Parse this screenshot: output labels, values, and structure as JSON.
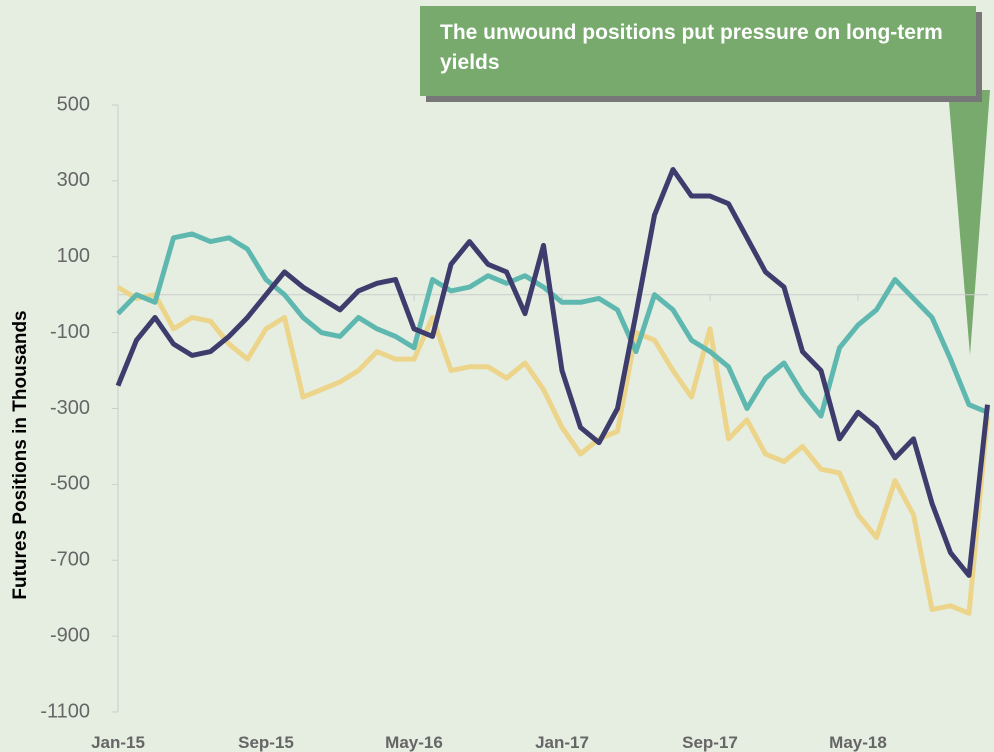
{
  "chart_data": {
    "type": "line",
    "y_label": "Futures Positions in Thousands",
    "annotation": "The unwound positions put pressure on long-term yields",
    "categories": [
      "Jan-15",
      null,
      null,
      null,
      null,
      null,
      null,
      null,
      "Sep-15",
      null,
      null,
      null,
      null,
      null,
      null,
      null,
      "May-16",
      null,
      null,
      null,
      null,
      null,
      null,
      null,
      "Jan-17",
      null,
      null,
      null,
      null,
      null,
      null,
      null,
      "Sep-17",
      null,
      null,
      null,
      null,
      null,
      null,
      null,
      "May-18",
      null,
      null,
      null,
      null,
      null,
      null,
      null
    ],
    "series": [
      {
        "color": "#3d3c6c",
        "values": [
          -240,
          -120,
          -60,
          -130,
          -160,
          -150,
          -110,
          -60,
          0,
          60,
          20,
          -10,
          -40,
          10,
          30,
          40,
          -90,
          -110,
          80,
          140,
          80,
          60,
          -50,
          130,
          -200,
          -350,
          -390,
          -300,
          -50,
          210,
          330,
          260,
          260,
          240,
          150,
          60,
          20,
          -150,
          -200,
          -380,
          -310,
          -350,
          -430,
          -380,
          -550,
          -680,
          -740,
          -290
        ]
      },
      {
        "color": "#5fb8b0",
        "values": [
          -50,
          0,
          -20,
          150,
          160,
          140,
          150,
          120,
          40,
          0,
          -60,
          -100,
          -110,
          -60,
          -90,
          -110,
          -140,
          40,
          10,
          20,
          50,
          30,
          50,
          20,
          -20,
          -20,
          -10,
          -40,
          -150,
          0,
          -40,
          -120,
          -150,
          -190,
          -300,
          -220,
          -180,
          -260,
          -320,
          -140,
          -80,
          -40,
          40,
          -10,
          -60,
          -170,
          -290,
          -310
        ]
      },
      {
        "color": "#ecd58a",
        "values": [
          20,
          -10,
          0,
          -90,
          -60,
          -70,
          -130,
          -170,
          -90,
          -60,
          -270,
          -250,
          -230,
          -200,
          -150,
          -170,
          -170,
          -60,
          -200,
          -190,
          -190,
          -220,
          -180,
          -250,
          -350,
          -420,
          -380,
          -360,
          -100,
          -120,
          -200,
          -270,
          -90,
          -380,
          -330,
          -420,
          -440,
          -400,
          -460,
          -470,
          -580,
          -640,
          -490,
          -580,
          -830,
          -820,
          -840,
          -320
        ]
      }
    ],
    "ylim": [
      -1100,
      500
    ],
    "yticks": [
      500,
      300,
      100,
      -100,
      -300,
      -500,
      -700,
      -900,
      -1100
    ]
  }
}
